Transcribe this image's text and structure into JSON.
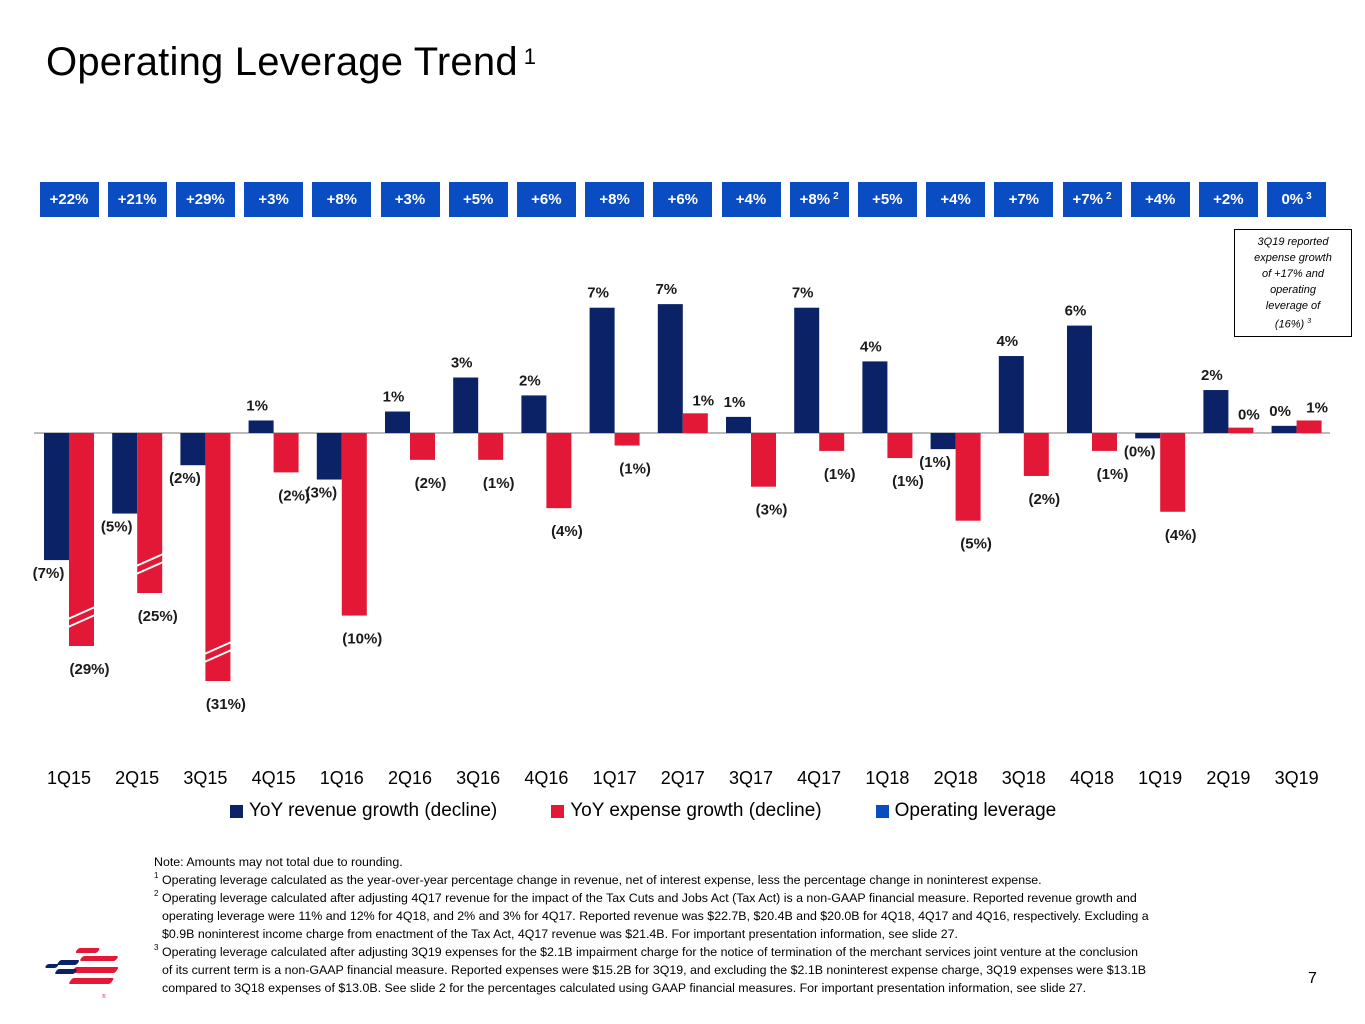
{
  "title": {
    "text": "Operating Leverage Trend",
    "footnote_ref": "1"
  },
  "operating_leverage": [
    {
      "quarter": "1Q15",
      "label": "+22%",
      "note": ""
    },
    {
      "quarter": "2Q15",
      "label": "+21%",
      "note": ""
    },
    {
      "quarter": "3Q15",
      "label": "+29%",
      "note": ""
    },
    {
      "quarter": "4Q15",
      "label": "+3%",
      "note": ""
    },
    {
      "quarter": "1Q16",
      "label": "+8%",
      "note": ""
    },
    {
      "quarter": "2Q16",
      "label": "+3%",
      "note": ""
    },
    {
      "quarter": "3Q16",
      "label": "+5%",
      "note": ""
    },
    {
      "quarter": "4Q16",
      "label": "+6%",
      "note": ""
    },
    {
      "quarter": "1Q17",
      "label": "+8%",
      "note": ""
    },
    {
      "quarter": "2Q17",
      "label": "+6%",
      "note": ""
    },
    {
      "quarter": "3Q17",
      "label": "+4%",
      "note": ""
    },
    {
      "quarter": "4Q17",
      "label": "+8%",
      "note": "2"
    },
    {
      "quarter": "1Q18",
      "label": "+5%",
      "note": ""
    },
    {
      "quarter": "2Q18",
      "label": "+4%",
      "note": ""
    },
    {
      "quarter": "3Q18",
      "label": "+7%",
      "note": ""
    },
    {
      "quarter": "4Q18",
      "label": "+7%",
      "note": "2"
    },
    {
      "quarter": "1Q19",
      "label": "+4%",
      "note": ""
    },
    {
      "quarter": "2Q19",
      "label": "+2%",
      "note": ""
    },
    {
      "quarter": "3Q19",
      "label": "0%",
      "note": "3"
    }
  ],
  "callout": {
    "lines": [
      "3Q19 reported",
      "expense growth",
      "of +17% and",
      "operating",
      "leverage of"
    ],
    "last_line": "(16%)",
    "footnote_ref": "3"
  },
  "colors": {
    "revenue": "#0b2266",
    "expense": "#e31837",
    "operating_leverage": "#0a4cc1",
    "axis": "#a6a6a6"
  },
  "chart_data": {
    "type": "bar",
    "title": "Operating Leverage Trend",
    "xlabel": "",
    "ylabel": "",
    "categories": [
      "1Q15",
      "2Q15",
      "3Q15",
      "4Q15",
      "1Q16",
      "2Q16",
      "3Q16",
      "4Q16",
      "1Q17",
      "2Q17",
      "3Q17",
      "4Q17",
      "1Q18",
      "2Q18",
      "3Q18",
      "4Q18",
      "1Q19",
      "2Q19",
      "3Q19"
    ],
    "series": [
      {
        "name": "YoY revenue growth (decline)",
        "values": [
          -7.1,
          -4.5,
          -1.8,
          0.7,
          -2.6,
          1.2,
          3.1,
          2.1,
          7.0,
          7.2,
          0.9,
          7.0,
          4.0,
          -0.9,
          4.3,
          6.0,
          -0.3,
          2.4,
          0.4
        ],
        "labels": [
          "(7%)",
          "(5%)",
          "(2%)",
          "1%",
          "(3%)",
          "1%",
          "3%",
          "2%",
          "7%",
          "7%",
          "1%",
          "7%",
          "4%",
          "(1%)",
          "4%",
          "6%",
          "(0%)",
          "2%",
          "0%"
        ]
      },
      {
        "name": "YoY expense growth (decline)",
        "values": [
          -29,
          -25,
          -31,
          -2.2,
          -10.2,
          -1.5,
          -1.5,
          -4.2,
          -0.7,
          1.1,
          -3.0,
          -1.0,
          -1.4,
          -4.9,
          -2.4,
          -1.0,
          -4.4,
          0.3,
          0.7
        ],
        "labels": [
          "(29%)",
          "(25%)",
          "(31%)",
          "(2%)",
          "(10%)",
          "(2%)",
          "(1%)",
          "(4%)",
          "(1%)",
          "1%",
          "(3%)",
          "(1%)",
          "(1%)",
          "(5%)",
          "(2%)",
          "(1%)",
          "(4%)",
          "0%",
          "1%"
        ],
        "axis_break": [
          true,
          true,
          true,
          false,
          false,
          false,
          false,
          false,
          false,
          false,
          false,
          false,
          false,
          false,
          false,
          false,
          false,
          false,
          false
        ]
      },
      {
        "name": "Operating leverage",
        "values": [
          22,
          21,
          29,
          3,
          8,
          3,
          5,
          6,
          8,
          6,
          4,
          8,
          5,
          4,
          7,
          7,
          4,
          2,
          0
        ]
      }
    ],
    "legend": "bottom",
    "grid": false
  },
  "notes": {
    "note": "Note: Amounts may not total due to rounding.",
    "footnotes": [
      {
        "ref": "1",
        "lines": [
          "Operating leverage calculated as the year-over-year percentage change in revenue, net of interest expense, less the percentage change in noninterest expense."
        ]
      },
      {
        "ref": "2",
        "lines": [
          "Operating leverage calculated after adjusting 4Q17 revenue for the impact of the Tax Cuts and Jobs Act (Tax Act) is a non-GAAP financial measure. Reported revenue growth and",
          "operating leverage were 11% and 12% for 4Q18, and 2% and 3% for 4Q17. Reported revenue was $22.7B, $20.4B and $20.0B for 4Q18, 4Q17 and 4Q16, respectively. Excluding a",
          "$0.9B noninterest income charge from enactment of the Tax Act, 4Q17 revenue was $21.4B. For important presentation information, see slide 27."
        ]
      },
      {
        "ref": "3",
        "lines": [
          "Operating leverage calculated after adjusting 3Q19 expenses for the $2.1B impairment charge for the notice of termination of the merchant services joint venture at the conclusion",
          "of its current term is a non-GAAP financial measure. Reported expenses were $15.2B for 3Q19, and excluding the $2.1B noninterest expense charge, 3Q19 expenses were $13.1B",
          "compared to 3Q18 expenses of $13.0B. See slide 2 for the percentages calculated using GAAP financial measures. For important presentation information, see slide 27."
        ]
      }
    ]
  },
  "page_number": "7",
  "logo": {
    "name": "bank-of-america-flag-logo"
  }
}
